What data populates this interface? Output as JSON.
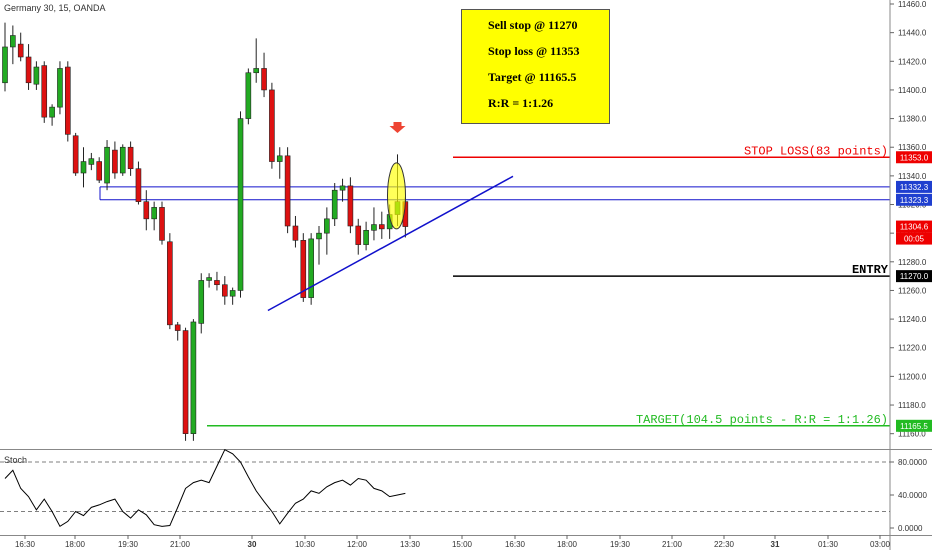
{
  "symbol_title": "Germany 30, 15, OANDA",
  "plan": {
    "lines": [
      "Sell stop @ 11270",
      "Stop loss @ 11353",
      "Target @ 11165.5",
      "R:R = 1:1.26"
    ]
  },
  "annotations": {
    "stop_loss_label": "STOP LOSS(83 points)",
    "entry_label": "ENTRY",
    "target_label": "TARGET(104.5 points - R:R = 1:1.26)"
  },
  "price_tags": {
    "stop_loss": "11353.0",
    "resistance_upper": "11332.3",
    "resistance_lower": "11323.3",
    "last_price": "11304.6",
    "countdown": "00:05",
    "entry": "11270.0",
    "target": "11165.5"
  },
  "stoch_title": "Stoch",
  "colors": {
    "bull": "#22aa22",
    "bear": "#dd1111",
    "stop_line": "#ee0000",
    "entry_line": "#000000",
    "target_line": "#22bb22",
    "level_line": "#1111cc",
    "plan_box": "#ffff00",
    "marker": "#ee4433"
  },
  "chart_data": [
    {
      "type": "candlestick",
      "title": "Germany 30, 15, OANDA",
      "ylim": [
        11150,
        11460
      ],
      "y_ticks": [
        "11460.0",
        "11440.0",
        "11420.0",
        "11400.0",
        "11380.0",
        "11360.0",
        "11340.0",
        "11320.0",
        "11300.0",
        "11280.0",
        "11260.0",
        "11240.0",
        "11220.0",
        "11200.0",
        "11180.0",
        "11160.0"
      ],
      "x_ticks": [
        "16:30",
        "18:00",
        "19:30",
        "21:00",
        "30",
        "10:30",
        "12:00",
        "13:30",
        "15:00",
        "16:30",
        "18:00",
        "19:30",
        "21:00",
        "22:30",
        "31",
        "01:30",
        "03:00"
      ],
      "candles": [
        {
          "o": 11405,
          "h": 11447,
          "l": 11399,
          "c": 11430
        },
        {
          "o": 11430,
          "h": 11445,
          "l": 11418,
          "c": 11438
        },
        {
          "o": 11432,
          "h": 11440,
          "l": 11420,
          "c": 11423
        },
        {
          "o": 11423,
          "h": 11432,
          "l": 11400,
          "c": 11405
        },
        {
          "o": 11404,
          "h": 11420,
          "l": 11400,
          "c": 11416
        },
        {
          "o": 11417,
          "h": 11420,
          "l": 11377,
          "c": 11381
        },
        {
          "o": 11381,
          "h": 11390,
          "l": 11375,
          "c": 11388
        },
        {
          "o": 11388,
          "h": 11420,
          "l": 11383,
          "c": 11415
        },
        {
          "o": 11416,
          "h": 11420,
          "l": 11364,
          "c": 11369
        },
        {
          "o": 11368,
          "h": 11370,
          "l": 11340,
          "c": 11342
        },
        {
          "o": 11342,
          "h": 11360,
          "l": 11332,
          "c": 11350
        },
        {
          "o": 11348,
          "h": 11356,
          "l": 11344,
          "c": 11352
        },
        {
          "o": 11350,
          "h": 11353,
          "l": 11335,
          "c": 11337
        },
        {
          "o": 11335,
          "h": 11365,
          "l": 11330,
          "c": 11360
        },
        {
          "o": 11358,
          "h": 11364,
          "l": 11338,
          "c": 11342
        },
        {
          "o": 11342,
          "h": 11362,
          "l": 11340,
          "c": 11360
        },
        {
          "o": 11360,
          "h": 11364,
          "l": 11340,
          "c": 11345
        },
        {
          "o": 11345,
          "h": 11350,
          "l": 11320,
          "c": 11322
        },
        {
          "o": 11322,
          "h": 11330,
          "l": 11302,
          "c": 11310
        },
        {
          "o": 11310,
          "h": 11322,
          "l": 11302,
          "c": 11318
        },
        {
          "o": 11318,
          "h": 11322,
          "l": 11292,
          "c": 11295
        },
        {
          "o": 11294,
          "h": 11300,
          "l": 11233,
          "c": 11236
        },
        {
          "o": 11236,
          "h": 11238,
          "l": 11225,
          "c": 11232
        },
        {
          "o": 11232,
          "h": 11234,
          "l": 11155,
          "c": 11160
        },
        {
          "o": 11160,
          "h": 11240,
          "l": 11155,
          "c": 11238
        },
        {
          "o": 11237,
          "h": 11272,
          "l": 11230,
          "c": 11267
        },
        {
          "o": 11267,
          "h": 11272,
          "l": 11262,
          "c": 11269
        },
        {
          "o": 11267,
          "h": 11273,
          "l": 11260,
          "c": 11264
        },
        {
          "o": 11264,
          "h": 11270,
          "l": 11250,
          "c": 11256
        },
        {
          "o": 11256,
          "h": 11262,
          "l": 11250,
          "c": 11260
        },
        {
          "o": 11260,
          "h": 11385,
          "l": 11255,
          "c": 11380
        },
        {
          "o": 11380,
          "h": 11415,
          "l": 11376,
          "c": 11412
        },
        {
          "o": 11412,
          "h": 11436,
          "l": 11405,
          "c": 11415
        },
        {
          "o": 11415,
          "h": 11426,
          "l": 11395,
          "c": 11400
        },
        {
          "o": 11400,
          "h": 11405,
          "l": 11345,
          "c": 11350
        },
        {
          "o": 11350,
          "h": 11360,
          "l": 11338,
          "c": 11354
        },
        {
          "o": 11354,
          "h": 11360,
          "l": 11300,
          "c": 11305
        },
        {
          "o": 11305,
          "h": 11312,
          "l": 11290,
          "c": 11295
        },
        {
          "o": 11295,
          "h": 11300,
          "l": 11252,
          "c": 11255
        },
        {
          "o": 11255,
          "h": 11300,
          "l": 11250,
          "c": 11296
        },
        {
          "o": 11296,
          "h": 11305,
          "l": 11278,
          "c": 11300
        },
        {
          "o": 11300,
          "h": 11318,
          "l": 11285,
          "c": 11310
        },
        {
          "o": 11310,
          "h": 11335,
          "l": 11305,
          "c": 11330
        },
        {
          "o": 11330,
          "h": 11338,
          "l": 11322,
          "c": 11333
        },
        {
          "o": 11333,
          "h": 11339,
          "l": 11300,
          "c": 11305
        },
        {
          "o": 11305,
          "h": 11310,
          "l": 11285,
          "c": 11292
        },
        {
          "o": 11292,
          "h": 11308,
          "l": 11288,
          "c": 11302
        },
        {
          "o": 11302,
          "h": 11318,
          "l": 11295,
          "c": 11306
        },
        {
          "o": 11306,
          "h": 11315,
          "l": 11296,
          "c": 11303
        },
        {
          "o": 11303,
          "h": 11320,
          "l": 11296,
          "c": 11313
        },
        {
          "o": 11313,
          "h": 11355,
          "l": 11305,
          "c": 11322
        },
        {
          "o": 11322,
          "h": 11325,
          "l": 11297,
          "c": 11304.6
        }
      ],
      "horizontal_levels": [
        {
          "name": "stop-loss",
          "value": 11353.0
        },
        {
          "name": "resistance-upper",
          "value": 11332.3
        },
        {
          "name": "resistance-lower",
          "value": 11323.3
        },
        {
          "name": "entry",
          "value": 11270.0
        },
        {
          "name": "target",
          "value": 11165.5
        }
      ],
      "trendline": {
        "from_candle": 34,
        "from_price": 11246,
        "to_candle": 54,
        "to_price": 11332
      }
    },
    {
      "type": "line",
      "title": "Stoch",
      "ylim": [
        0,
        100
      ],
      "y_ticks": [
        "80.0000",
        "40.0000",
        "0.0000"
      ],
      "reference_levels": [
        80,
        20
      ],
      "values": [
        60,
        70,
        48,
        38,
        22,
        35,
        20,
        2,
        8,
        20,
        15,
        25,
        28,
        32,
        35,
        20,
        12,
        22,
        16,
        4,
        2,
        3,
        25,
        48,
        55,
        58,
        55,
        75,
        95,
        90,
        80,
        62,
        45,
        32,
        20,
        5,
        18,
        30,
        35,
        45,
        42,
        50,
        55,
        58,
        52,
        60,
        58,
        48,
        45,
        38,
        40,
        42
      ]
    }
  ]
}
